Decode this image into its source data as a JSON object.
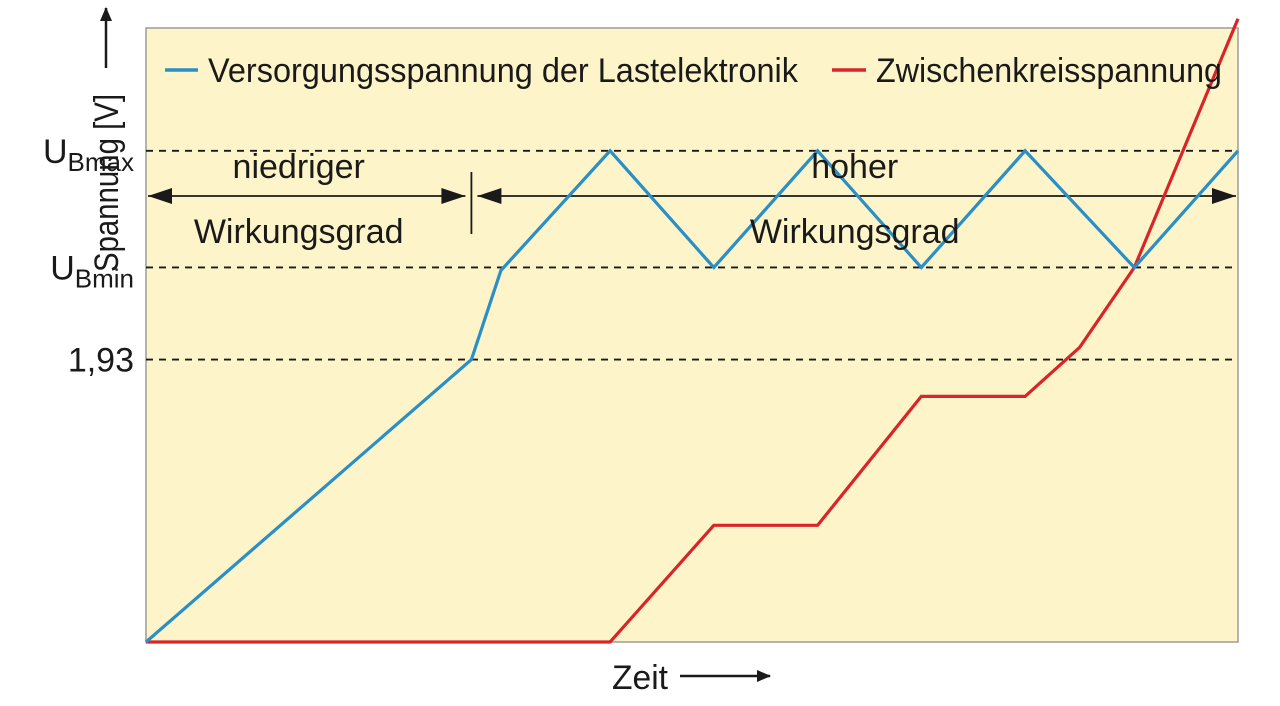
{
  "chart_data": {
    "type": "line",
    "xlabel": "Zeit",
    "ylabel": "Spannung [V]",
    "legend_position": "top",
    "grid": false,
    "background_color": "#fdf5c9",
    "xlim": [
      0,
      100
    ],
    "ylim": [
      0,
      100
    ],
    "series": [
      {
        "name": "Versorgungsspannung der Lastelektronik",
        "color": "#2a8fc6",
        "points": [
          [
            0,
            0
          ],
          [
            29.8,
            46
          ],
          [
            32.5,
            60.5
          ],
          [
            42.5,
            80
          ],
          [
            52,
            61
          ],
          [
            61.5,
            80
          ],
          [
            71,
            61
          ],
          [
            80.5,
            80
          ],
          [
            90.5,
            61
          ],
          [
            100,
            80
          ]
        ]
      },
      {
        "name": "Zwischenkreisspannung",
        "color": "#d9252a",
        "points": [
          [
            0,
            0
          ],
          [
            42.5,
            0
          ],
          [
            52,
            19
          ],
          [
            61.5,
            19
          ],
          [
            71,
            40
          ],
          [
            80.5,
            40
          ],
          [
            85.5,
            48
          ],
          [
            90.5,
            61
          ],
          [
            100,
            101.5
          ]
        ]
      }
    ],
    "reference_lines": [
      {
        "label_main": "U",
        "label_sub": "Bmax",
        "y": 80
      },
      {
        "label_main": "U",
        "label_sub": "Bmin",
        "y": 61
      },
      {
        "label_main": "1,93",
        "label_sub": "",
        "y": 46
      }
    ],
    "regions": [
      {
        "line1": "niedriger",
        "line2": "Wirkungsgrad",
        "x_start": 0,
        "x_end": 29.8
      },
      {
        "line1": "hoher",
        "line2": "Wirkungsgrad",
        "x_start": 29.8,
        "x_end": 100
      }
    ]
  }
}
